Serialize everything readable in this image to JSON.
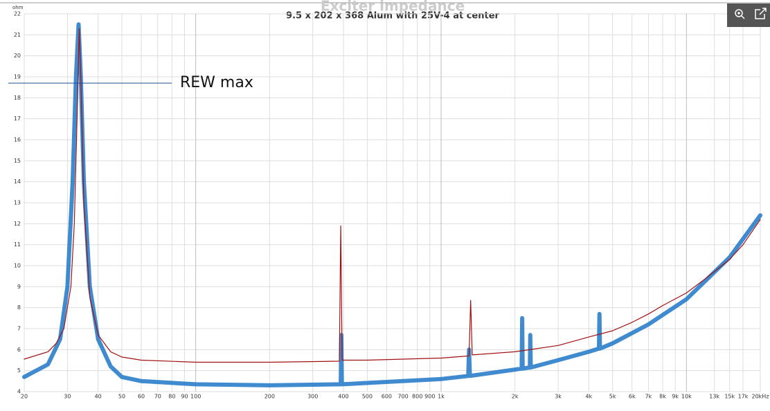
{
  "chart_data": {
    "type": "line",
    "background_title": "Exciter impedance",
    "title": "9.5 x 202 x 368 Alum with 25V-4 at center",
    "y_unit": "ohm",
    "xscale": "log",
    "grid": true,
    "xlim": [
      20,
      20000
    ],
    "ylim": [
      4,
      22
    ],
    "yticks": [
      4,
      5,
      6,
      7,
      8,
      9,
      10,
      11,
      12,
      13,
      14,
      15,
      16,
      17,
      18,
      19,
      20,
      21,
      22
    ],
    "xticks": [
      20,
      30,
      40,
      50,
      60,
      70,
      80,
      90,
      100,
      200,
      300,
      400,
      500,
      600,
      700,
      800,
      900,
      {
        "value": 1000,
        "label": "1k"
      },
      {
        "value": 2000,
        "label": "2k"
      },
      {
        "value": 3000,
        "label": "3k"
      },
      {
        "value": 4000,
        "label": "4k"
      },
      {
        "value": 5000,
        "label": "5k"
      },
      {
        "value": 6000,
        "label": "6k"
      },
      {
        "value": 7000,
        "label": "7k"
      },
      {
        "value": 8000,
        "label": "8k"
      },
      {
        "value": 9000,
        "label": "9k"
      },
      {
        "value": 10000,
        "label": "10k"
      },
      {
        "value": 13000,
        "label": "13k"
      },
      {
        "value": 15000,
        "label": "15k"
      },
      {
        "value": 17000,
        "label": "17k"
      },
      {
        "value": 20000,
        "label": "20kHz"
      }
    ],
    "annotation": {
      "text": "REW max",
      "y": 18.7
    },
    "series": [
      {
        "color": "#1f77c8",
        "width": 6,
        "x": [
          20,
          25,
          28,
          30,
          31.5,
          32.5,
          33.3,
          34,
          35,
          37,
          40,
          45,
          50,
          60,
          100,
          200,
          390,
          392,
          394,
          1000,
          1290,
          1300,
          1310,
          2000,
          2130,
          2140,
          2150,
          2300,
          2310,
          2320,
          3000,
          4000,
          4400,
          4420,
          4440,
          5000,
          7000,
          10000,
          15000,
          20000
        ],
        "values": [
          4.7,
          5.3,
          6.5,
          9,
          14,
          19,
          21.5,
          19,
          14,
          9,
          6.5,
          5.2,
          4.7,
          4.5,
          4.35,
          4.3,
          4.35,
          6.7,
          4.35,
          4.6,
          4.75,
          6.0,
          4.75,
          5.05,
          5.1,
          7.5,
          5.1,
          5.15,
          6.7,
          5.15,
          5.5,
          5.9,
          6.05,
          7.7,
          6.05,
          6.3,
          7.2,
          8.4,
          10.4,
          12.4
        ]
      },
      {
        "color": "#a01010",
        "width": 1.2,
        "x": [
          20,
          25,
          27,
          29,
          31,
          32,
          33,
          33.5,
          34,
          35,
          37,
          40,
          45,
          50,
          60,
          100,
          200,
          385,
          390,
          395,
          500,
          1000,
          1300,
          1320,
          1340,
          2000,
          3000,
          4000,
          5000,
          6000,
          7000,
          8000,
          10000,
          12000,
          15000,
          17000,
          20000
        ],
        "values": [
          5.55,
          5.9,
          6.3,
          7.0,
          9,
          12,
          18,
          21.3,
          19,
          13,
          8.5,
          6.7,
          5.9,
          5.65,
          5.5,
          5.4,
          5.4,
          5.45,
          11.9,
          5.5,
          5.5,
          5.6,
          5.7,
          8.35,
          5.75,
          5.9,
          6.2,
          6.6,
          6.9,
          7.3,
          7.7,
          8.1,
          8.7,
          9.4,
          10.3,
          11.0,
          12.2
        ]
      }
    ]
  }
}
